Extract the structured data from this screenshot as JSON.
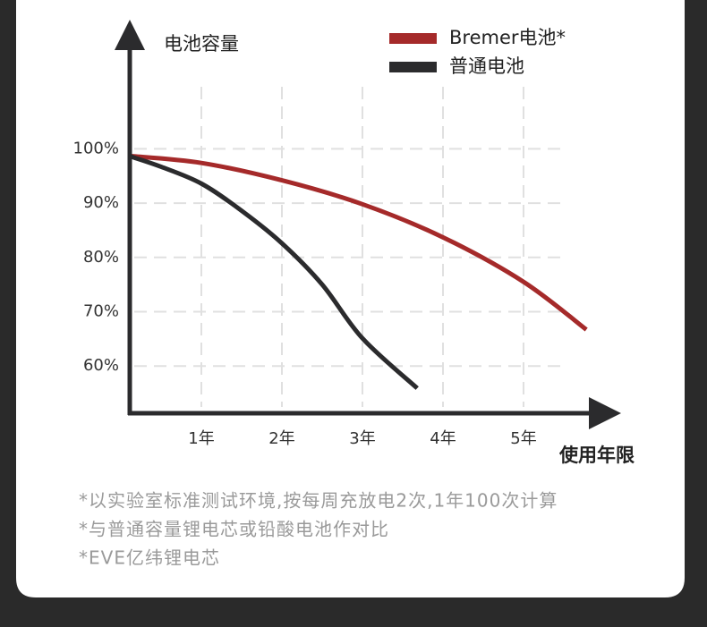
{
  "chart_data": {
    "type": "line",
    "y_label": "电池容量",
    "x_label": "使用年限",
    "series": [
      {
        "name": "Bremer电池*",
        "color": "#a52a2a",
        "x": [
          0.1,
          1,
          2,
          3,
          4,
          5,
          5.78
        ],
        "values": [
          98.7,
          97.4,
          94.2,
          89.8,
          83.7,
          75.5,
          66.7
        ]
      },
      {
        "name": "普通电池",
        "color": "#2b2b2d",
        "x": [
          0.1,
          0.5,
          1,
          1.5,
          2,
          2.5,
          3,
          3.68
        ],
        "values": [
          98.7,
          96.7,
          93.6,
          88.6,
          82.6,
          75,
          65.1,
          55.9
        ]
      }
    ],
    "xlim": [
      0.1,
      6.2
    ],
    "xticks": [
      {
        "value": 1,
        "label": "1年"
      },
      {
        "value": 2,
        "label": "2年"
      },
      {
        "value": 3,
        "label": "3年"
      },
      {
        "value": 4,
        "label": "4年"
      },
      {
        "value": 5,
        "label": "5年"
      }
    ],
    "ylim": [
      51.3,
      120
    ],
    "yticks": [
      {
        "value": 60,
        "label": "60%"
      },
      {
        "value": 70,
        "label": "70%"
      },
      {
        "value": 80,
        "label": "80%"
      },
      {
        "value": 90,
        "label": "90%"
      },
      {
        "value": 100,
        "label": "100%"
      }
    ],
    "grid": true,
    "annotations": [
      "*以实验室标准测试环境,按每周充放电2次,1年100次计算",
      "*与普通容量锂电芯或铅酸电池作对比",
      "*EVE亿纬锂电芯"
    ]
  }
}
